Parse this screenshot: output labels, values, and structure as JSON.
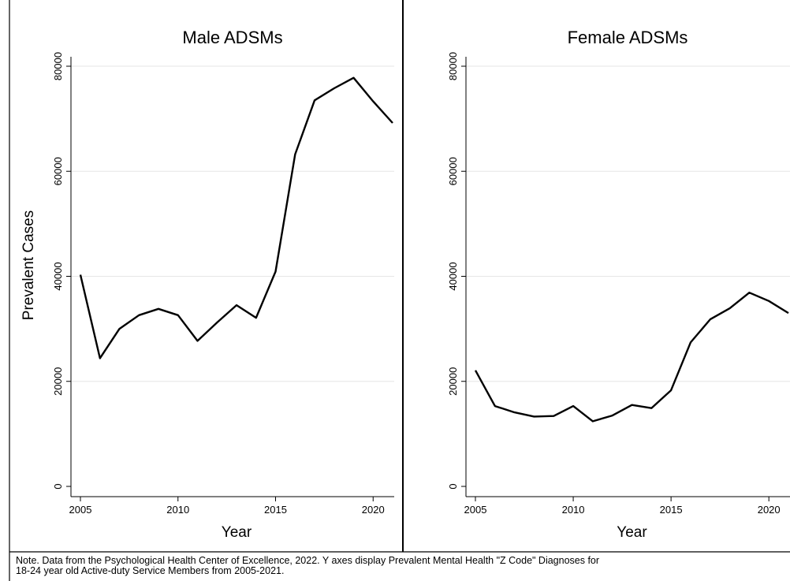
{
  "note": "Note. Data from the Psychological Health Center of Excellence, 2022.  Y axes display Prevalent Mental Health \"Z Code\" Diagnoses for\n18-24 year old Active-duty Service Members from 2005-2021.",
  "chart_data": [
    {
      "type": "line",
      "title": "Male ADSMs",
      "xlabel": "Year",
      "ylabel": "Prevalent Cases",
      "xlim": [
        2005,
        2021
      ],
      "ylim": [
        0,
        80000
      ],
      "xticks": [
        2005,
        2010,
        2015,
        2020
      ],
      "yticks": [
        0,
        20000,
        40000,
        60000,
        80000
      ],
      "grid": true,
      "line_color": "#000000",
      "x": [
        2005,
        2006,
        2007,
        2008,
        2009,
        2010,
        2011,
        2012,
        2013,
        2014,
        2015,
        2016,
        2017,
        2018,
        2019,
        2020,
        2021
      ],
      "values": [
        40300,
        24400,
        30000,
        32600,
        33800,
        32600,
        27700,
        31200,
        34500,
        32100,
        40900,
        63200,
        73500,
        75800,
        77800,
        73300,
        69200
      ]
    },
    {
      "type": "line",
      "title": "Female ADSMs",
      "xlabel": "Year",
      "ylabel": "",
      "xlim": [
        2005,
        2021
      ],
      "ylim": [
        0,
        80000
      ],
      "xticks": [
        2005,
        2010,
        2015,
        2020
      ],
      "yticks": [
        0,
        20000,
        40000,
        60000,
        80000
      ],
      "grid": true,
      "line_color": "#000000",
      "x": [
        2005,
        2006,
        2007,
        2008,
        2009,
        2010,
        2011,
        2012,
        2013,
        2014,
        2015,
        2016,
        2017,
        2018,
        2019,
        2020,
        2021
      ],
      "values": [
        22100,
        15300,
        14100,
        13300,
        13400,
        15300,
        12400,
        13500,
        15500,
        14900,
        18300,
        27400,
        31800,
        33900,
        36900,
        35300,
        33000
      ]
    }
  ]
}
